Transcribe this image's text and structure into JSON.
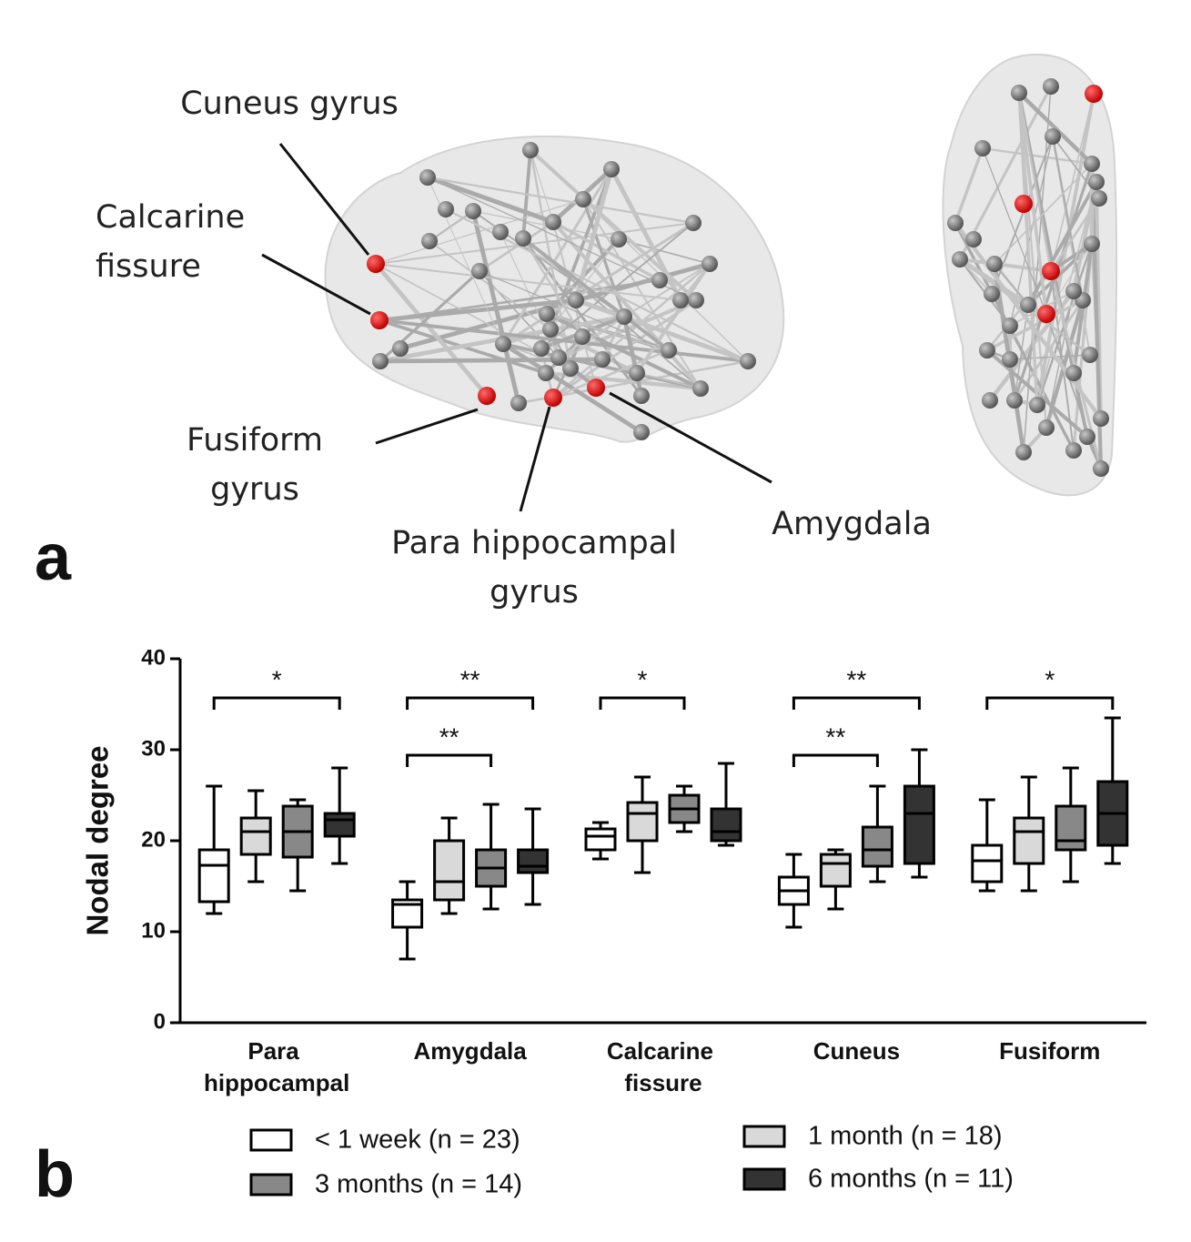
{
  "panel_a": {
    "label": "a",
    "annotations": [
      {
        "lines": [
          "Cuneus gyrus"
        ]
      },
      {
        "lines": [
          "Calcarine",
          "fissure"
        ]
      },
      {
        "lines": [
          "Fusiform",
          "gyrus"
        ]
      },
      {
        "lines": [
          "Para hippocampal",
          "gyrus"
        ]
      },
      {
        "lines": [
          "Amygdala"
        ]
      }
    ]
  },
  "panel_b_label": "b",
  "chart_data": {
    "type": "box",
    "ylabel": "Nodal degree",
    "ylim": [
      0,
      40
    ],
    "yticks": [
      0,
      10,
      20,
      30,
      40
    ],
    "categories": [
      "Para hippocampal",
      "Amygdala",
      "Calcarine fissure",
      "Cuneus",
      "Fusiform"
    ],
    "series": [
      {
        "name": "< 1 week (n = 23)",
        "color": "#ffffff",
        "boxes": [
          {
            "whislo": 12,
            "q1": 13.3,
            "med": 17.3,
            "q3": 19,
            "whishi": 26
          },
          {
            "whislo": 7,
            "q1": 10.5,
            "med": 13,
            "q3": 13.5,
            "whishi": 15.5
          },
          {
            "whislo": 18,
            "q1": 19,
            "med": 20.5,
            "q3": 21.3,
            "whishi": 22
          },
          {
            "whislo": 10.5,
            "q1": 13,
            "med": 14.5,
            "q3": 16,
            "whishi": 18.5
          },
          {
            "whislo": 14.5,
            "q1": 15.5,
            "med": 17.8,
            "q3": 19.5,
            "whishi": 24.5
          }
        ]
      },
      {
        "name": "1 month (n = 18)",
        "color": "#d9d9d9",
        "boxes": [
          {
            "whislo": 15.5,
            "q1": 18.5,
            "med": 21,
            "q3": 22.5,
            "whishi": 25.5
          },
          {
            "whislo": 12,
            "q1": 13.5,
            "med": 15.5,
            "q3": 20,
            "whishi": 22.5
          },
          {
            "whislo": 16.5,
            "q1": 20,
            "med": 23,
            "q3": 24.2,
            "whishi": 27
          },
          {
            "whislo": 12.5,
            "q1": 15,
            "med": 17.5,
            "q3": 18.5,
            "whishi": 19
          },
          {
            "whislo": 14.5,
            "q1": 17.5,
            "med": 21,
            "q3": 22.5,
            "whishi": 27
          }
        ]
      },
      {
        "name": "3 months (n = 14)",
        "color": "#888888",
        "boxes": [
          {
            "whislo": 14.5,
            "q1": 18.2,
            "med": 21,
            "q3": 23.8,
            "whishi": 24.5
          },
          {
            "whislo": 12.5,
            "q1": 15,
            "med": 17,
            "q3": 19,
            "whishi": 24
          },
          {
            "whislo": 21,
            "q1": 22,
            "med": 23.5,
            "q3": 25,
            "whishi": 26
          },
          {
            "whislo": 15.5,
            "q1": 17.2,
            "med": 19,
            "q3": 21.5,
            "whishi": 26
          },
          {
            "whislo": 15.5,
            "q1": 19,
            "med": 20,
            "q3": 23.8,
            "whishi": 28
          }
        ]
      },
      {
        "name": "6 months (n = 11)",
        "color": "#333333",
        "boxes": [
          {
            "whislo": 17.5,
            "q1": 20.5,
            "med": 22.3,
            "q3": 23,
            "whishi": 28
          },
          {
            "whislo": 13,
            "q1": 16.5,
            "med": 17.2,
            "q3": 19,
            "whishi": 23.5
          },
          {
            "whislo": 19.5,
            "q1": 20,
            "med": 21,
            "q3": 23.5,
            "whishi": 28.5
          },
          {
            "whislo": 16,
            "q1": 17.5,
            "med": 23,
            "q3": 26,
            "whishi": 30
          },
          {
            "whislo": 17.5,
            "q1": 19.5,
            "med": 23,
            "q3": 26.5,
            "whishi": 33.5
          }
        ]
      }
    ],
    "comparisons": [
      {
        "category": 0,
        "groups": [
          0,
          3
        ],
        "label": "*"
      },
      {
        "category": 1,
        "groups": [
          0,
          3
        ],
        "label": "**"
      },
      {
        "category": 1,
        "groups": [
          0,
          2
        ],
        "label": "**"
      },
      {
        "category": 2,
        "groups": [
          0,
          2
        ],
        "label": "*"
      },
      {
        "category": 3,
        "groups": [
          0,
          3
        ],
        "label": "**"
      },
      {
        "category": 3,
        "groups": [
          0,
          2
        ],
        "label": "**"
      },
      {
        "category": 4,
        "groups": [
          0,
          3
        ],
        "label": "*"
      }
    ]
  }
}
